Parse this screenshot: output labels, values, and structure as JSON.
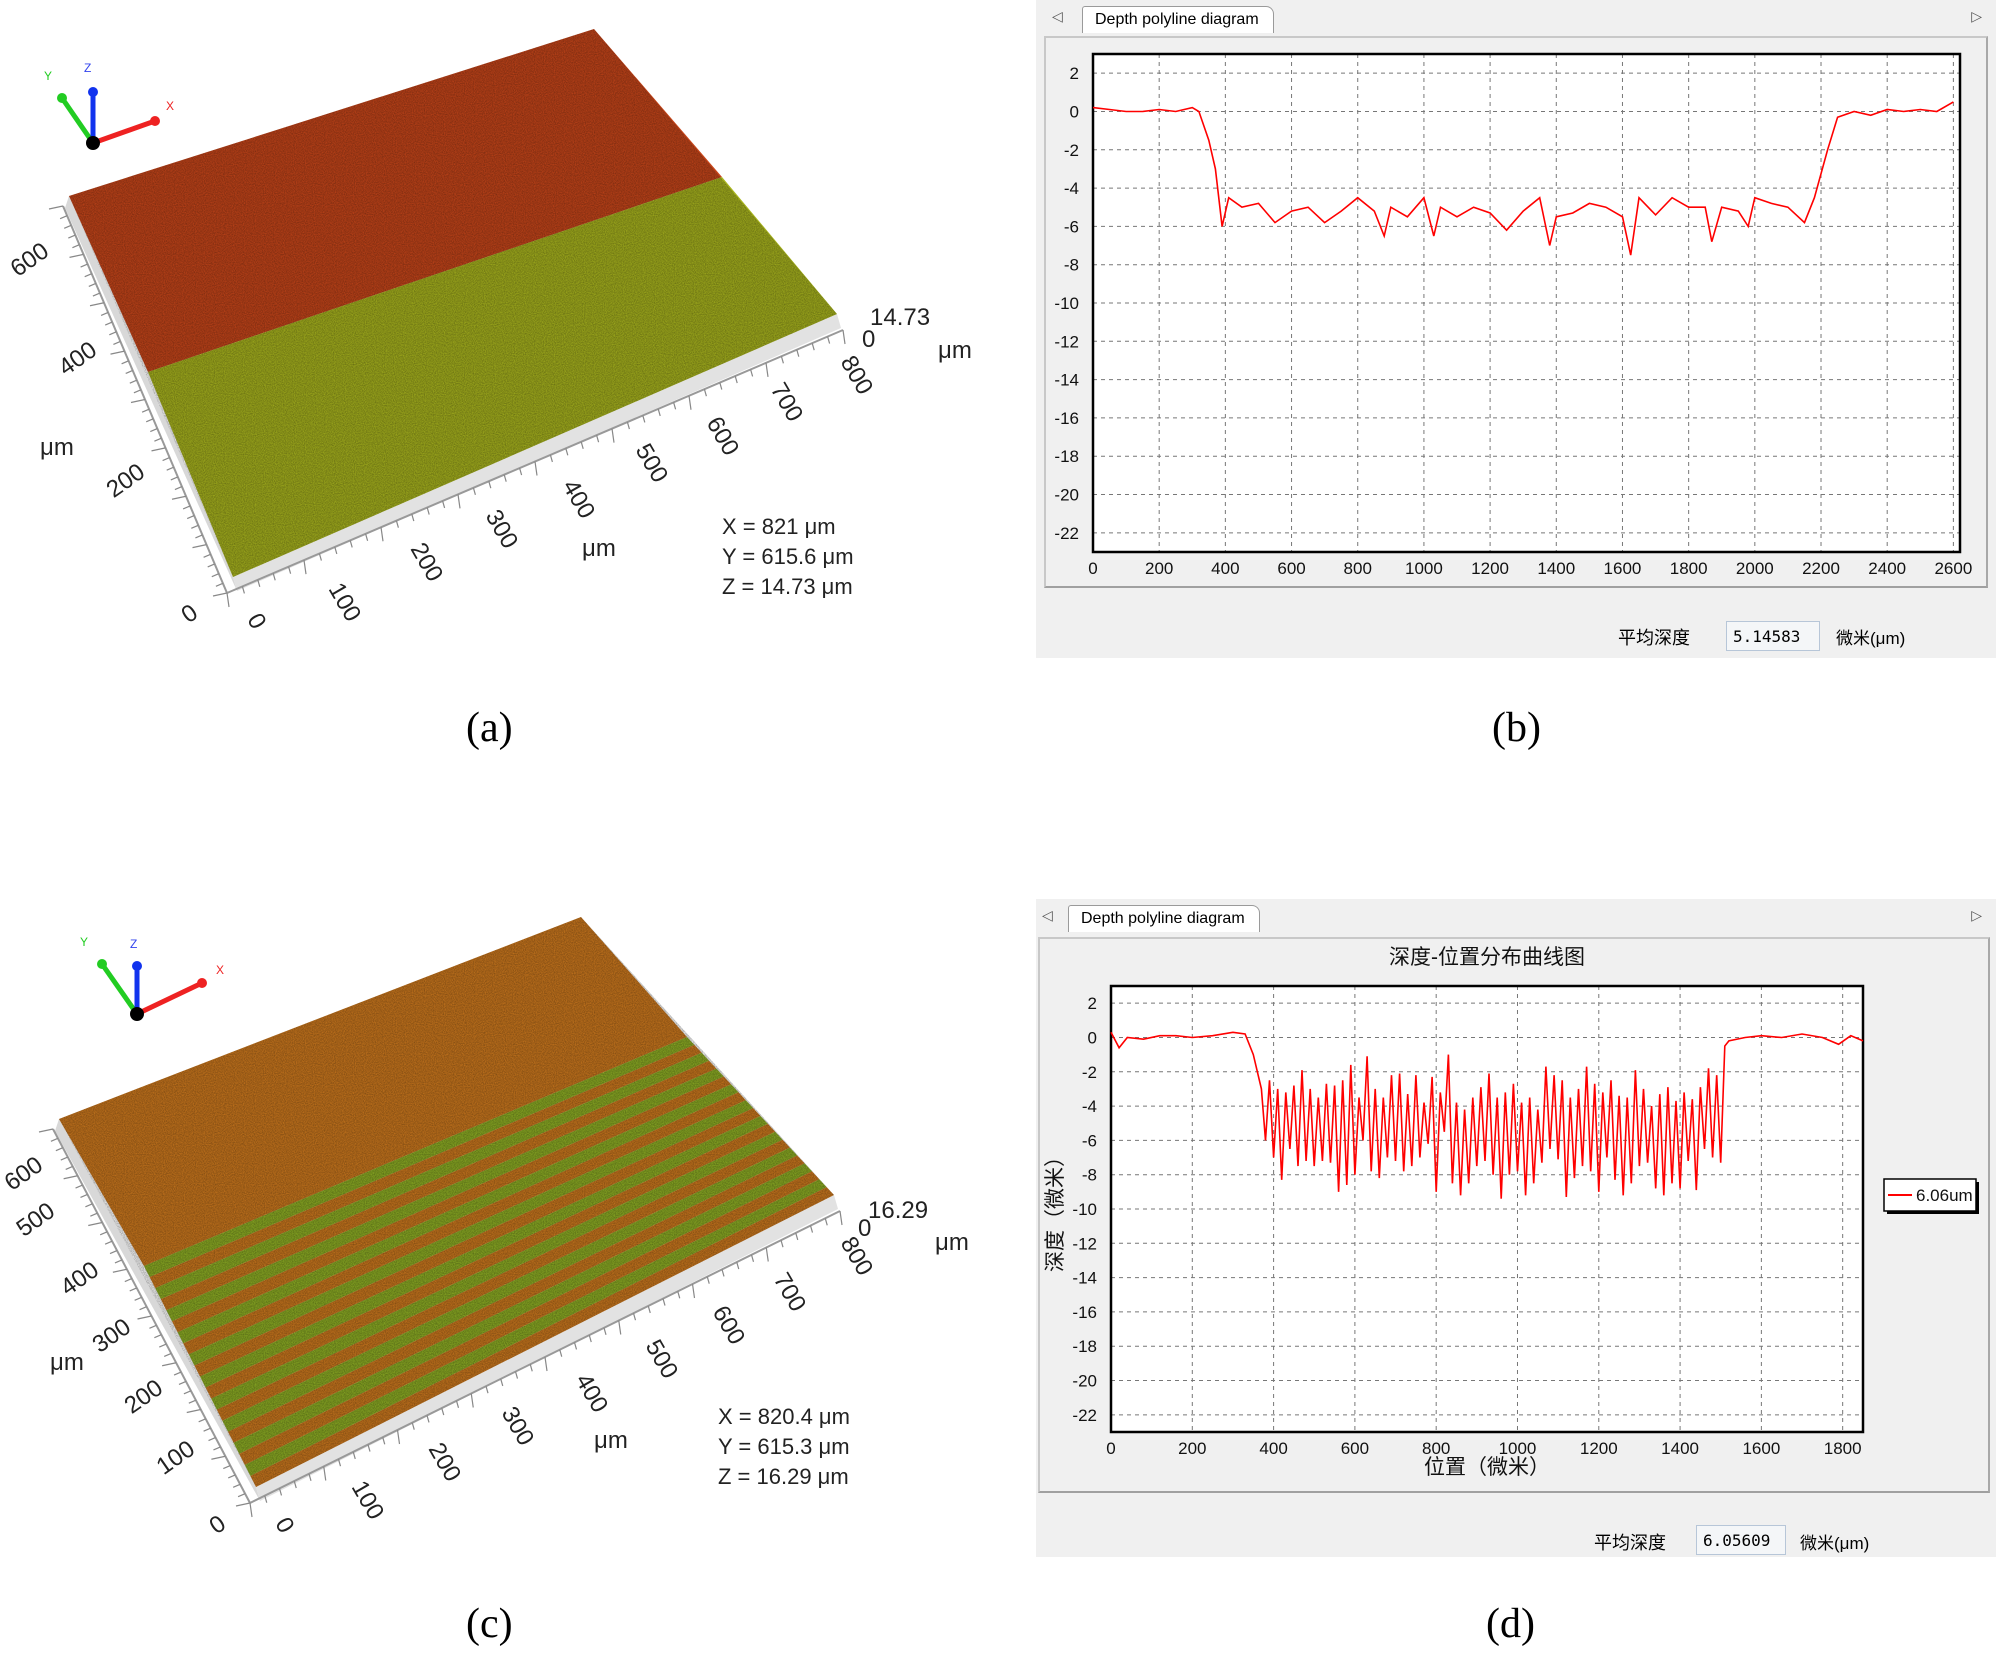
{
  "captions": {
    "a": "(a)",
    "b": "(b)",
    "c": "(c)",
    "d": "(d)"
  },
  "colors": {
    "trace": "#ff0000",
    "surface_high_a": "#c8461a",
    "surface_low_a": "#a9b51e",
    "surface_high_c": "#cf7a1e",
    "surface_low_c": "#8fb024",
    "window_bg": "#f0f0f0"
  },
  "panel_a": {
    "axis_letters": {
      "x": "X",
      "y": "Y",
      "z": "Z"
    },
    "y_ticks": [
      "600",
      "400",
      "200",
      "0"
    ],
    "x_ticks": [
      "0",
      "100",
      "200",
      "300",
      "400",
      "500",
      "600",
      "700",
      "800"
    ],
    "z_ticks": [
      "14.73",
      "0"
    ],
    "unit": "μm",
    "readout": [
      "X = 821 μm",
      "Y = 615.6 μm",
      "Z = 14.73 μm"
    ]
  },
  "panel_c": {
    "axis_letters": {
      "x": "X",
      "y": "Y",
      "z": "Z"
    },
    "y_ticks": [
      "600",
      "500",
      "400",
      "300",
      "200",
      "100",
      "0"
    ],
    "x_ticks": [
      "0",
      "100",
      "200",
      "300",
      "400",
      "500",
      "600",
      "700",
      "800"
    ],
    "z_ticks": [
      "16.29",
      "0"
    ],
    "unit": "μm",
    "readout": [
      "X = 820.4 μm",
      "Y = 615.3 μm",
      "Z = 16.29 μm"
    ]
  },
  "panel_b": {
    "tab_label": "Depth polyline diagram",
    "nav_left_icon": "triangle-left",
    "nav_right_icon": "triangle-right",
    "avg_depth_label": "平均深度",
    "avg_depth_value": "5.14583",
    "avg_depth_unit": "微米(μm)"
  },
  "panel_d": {
    "tab_label": "Depth polyline diagram",
    "nav_left_icon": "triangle-left",
    "nav_right_icon": "triangle-right",
    "avg_depth_label": "平均深度",
    "avg_depth_value": "6.05609",
    "avg_depth_unit": "微米(μm)"
  },
  "chart_data": [
    {
      "id": "b",
      "type": "line",
      "title": "",
      "xlabel": "",
      "ylabel": "",
      "xlim": [
        0,
        2620
      ],
      "ylim": [
        -23,
        3
      ],
      "xticks": [
        0,
        200,
        400,
        600,
        800,
        1000,
        1200,
        1400,
        1600,
        1800,
        2000,
        2200,
        2400,
        2600
      ],
      "yticks": [
        2,
        0,
        -2,
        -4,
        -6,
        -8,
        -10,
        -12,
        -14,
        -16,
        -18,
        -20,
        -22
      ],
      "grid": true,
      "series": [
        {
          "color": "#ff0000",
          "x": [
            0,
            50,
            100,
            150,
            200,
            250,
            300,
            320,
            350,
            370,
            390,
            410,
            450,
            500,
            550,
            600,
            650,
            700,
            750,
            800,
            850,
            880,
            900,
            950,
            1000,
            1030,
            1050,
            1100,
            1150,
            1200,
            1250,
            1300,
            1350,
            1380,
            1400,
            1450,
            1500,
            1550,
            1600,
            1625,
            1650,
            1700,
            1750,
            1800,
            1850,
            1870,
            1900,
            1950,
            1980,
            2000,
            2050,
            2100,
            2150,
            2180,
            2220,
            2250,
            2300,
            2350,
            2400,
            2450,
            2500,
            2550,
            2600
          ],
          "y": [
            0.2,
            0.1,
            0,
            0,
            0.1,
            0,
            0.2,
            0,
            -1.5,
            -3,
            -6,
            -4.5,
            -5,
            -4.8,
            -5.8,
            -5.2,
            -5,
            -5.8,
            -5.2,
            -4.5,
            -5.2,
            -6.5,
            -5,
            -5.5,
            -4.5,
            -6.5,
            -5,
            -5.5,
            -5,
            -5.3,
            -6.2,
            -5.2,
            -4.5,
            -7,
            -5.5,
            -5.3,
            -4.8,
            -5,
            -5.5,
            -7.5,
            -4.5,
            -5.4,
            -4.5,
            -5,
            -5,
            -6.8,
            -5,
            -5.2,
            -6,
            -4.5,
            -4.8,
            -5,
            -5.8,
            -4.5,
            -2,
            -0.3,
            0,
            -0.2,
            0.1,
            0,
            0.1,
            0,
            0.5
          ]
        }
      ]
    },
    {
      "id": "d",
      "type": "line",
      "title": "深度-位置分布曲线图",
      "xlabel": "位置（微米）",
      "ylabel": "深度（微米）",
      "xlim": [
        0,
        1850
      ],
      "ylim": [
        -23,
        3
      ],
      "xticks": [
        0,
        200,
        400,
        600,
        800,
        1000,
        1200,
        1400,
        1600,
        1800
      ],
      "yticks": [
        2,
        0,
        -2,
        -4,
        -6,
        -8,
        -10,
        -12,
        -14,
        -16,
        -18,
        -20,
        -22
      ],
      "grid": true,
      "legend": {
        "position": "right",
        "entries": [
          "6.06um"
        ]
      },
      "series": [
        {
          "name": "6.06um",
          "color": "#ff0000",
          "x": [
            0,
            20,
            40,
            80,
            120,
            160,
            200,
            250,
            300,
            330,
            350,
            370,
            380,
            390,
            400,
            410,
            420,
            430,
            440,
            450,
            460,
            470,
            480,
            490,
            500,
            510,
            520,
            530,
            540,
            550,
            560,
            570,
            580,
            590,
            600,
            610,
            620,
            630,
            640,
            650,
            660,
            670,
            680,
            690,
            700,
            710,
            720,
            730,
            740,
            750,
            760,
            770,
            780,
            790,
            800,
            810,
            820,
            830,
            840,
            850,
            860,
            870,
            880,
            890,
            900,
            910,
            920,
            930,
            940,
            950,
            960,
            970,
            980,
            990,
            1000,
            1010,
            1020,
            1030,
            1040,
            1050,
            1060,
            1070,
            1080,
            1090,
            1100,
            1110,
            1120,
            1130,
            1140,
            1150,
            1160,
            1170,
            1180,
            1190,
            1200,
            1210,
            1220,
            1230,
            1240,
            1250,
            1260,
            1270,
            1280,
            1290,
            1300,
            1310,
            1320,
            1330,
            1340,
            1350,
            1360,
            1370,
            1380,
            1390,
            1400,
            1410,
            1420,
            1430,
            1440,
            1450,
            1460,
            1470,
            1480,
            1490,
            1500,
            1510,
            1520,
            1560,
            1600,
            1650,
            1700,
            1750,
            1790,
            1820,
            1850
          ],
          "y": [
            0.3,
            -0.6,
            0,
            -0.1,
            0.1,
            0.1,
            0,
            0.1,
            0.3,
            0.2,
            -1,
            -3,
            -6,
            -2.5,
            -7,
            -3,
            -8.3,
            -3.2,
            -6.5,
            -2.8,
            -7.5,
            -1.9,
            -7.2,
            -3,
            -7.5,
            -3.5,
            -7.2,
            -2.7,
            -7.3,
            -2.8,
            -9,
            -2.5,
            -8.6,
            -1.6,
            -8,
            -3.5,
            -6,
            -1.1,
            -7.8,
            -3,
            -8.2,
            -3.5,
            -7,
            -2.2,
            -7.2,
            -2.1,
            -7.8,
            -3.3,
            -7.5,
            -2.2,
            -7,
            -3.8,
            -6.2,
            -2.3,
            -9,
            -3.2,
            -5.5,
            -1,
            -8.5,
            -3.8,
            -9.2,
            -4.2,
            -8.5,
            -3.5,
            -7.5,
            -2.9,
            -7.2,
            -2.1,
            -8,
            -3.5,
            -9.4,
            -3.2,
            -8,
            -2.7,
            -7.8,
            -3.8,
            -9.2,
            -3.5,
            -8.5,
            -4.2,
            -7.3,
            -1.7,
            -6.5,
            -2.2,
            -7.1,
            -2.5,
            -9.3,
            -3.5,
            -8.2,
            -3,
            -7.5,
            -1.7,
            -7.8,
            -2.7,
            -9,
            -3.2,
            -7,
            -2.5,
            -8.3,
            -3.4,
            -9.2,
            -3.5,
            -8.5,
            -1.9,
            -7.5,
            -3,
            -7.3,
            -4,
            -8.8,
            -3.3,
            -9.2,
            -2.9,
            -8.5,
            -3.7,
            -8.8,
            -3.2,
            -7.2,
            -3.6,
            -8.9,
            -2.9,
            -6.5,
            -1.8,
            -7,
            -2.2,
            -7.3,
            -0.5,
            -0.2,
            0,
            0.1,
            0,
            0.2,
            0,
            -0.4,
            0.1,
            -0.2
          ]
        }
      ]
    }
  ]
}
